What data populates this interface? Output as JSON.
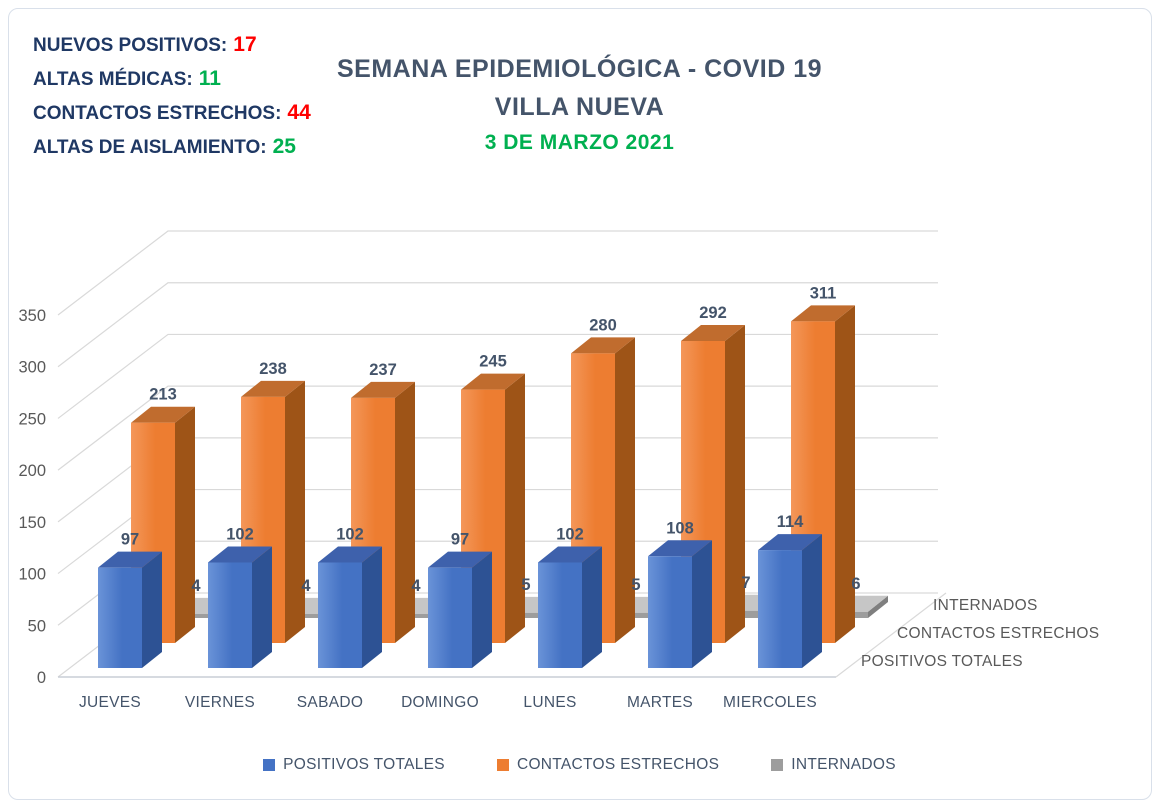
{
  "stats": {
    "items": [
      {
        "label": "NUEVOS POSITIVOS:",
        "value": "17",
        "value_color": "#ff0000"
      },
      {
        "label": "ALTAS MÉDICAS:",
        "value": "11",
        "value_color": "#00b050"
      },
      {
        "label": "CONTACTOS ESTRECHOS:",
        "value": "44",
        "value_color": "#ff0000"
      },
      {
        "label": "ALTAS DE AISLAMIENTO:",
        "value": "25",
        "value_color": "#00b050"
      }
    ]
  },
  "title": {
    "line1": "SEMANA EPIDEMIOLÓGICA - COVID 19",
    "line2": "VILLA NUEVA",
    "date": "3 DE MARZO 2021",
    "title_color": "#44546a",
    "date_color": "#00b050"
  },
  "chart_data": {
    "type": "bar",
    "projection": "3d",
    "title": "SEMANA EPIDEMIOLÓGICA - COVID 19 VILLA NUEVA",
    "categories": [
      "JUEVES",
      "VIERNES",
      "SABADO",
      "DOMINGO",
      "LUNES",
      "MARTES",
      "MIERCOLES"
    ],
    "series": [
      {
        "name": "POSITIVOS TOTALES",
        "values": [
          97,
          102,
          102,
          97,
          102,
          108,
          114
        ],
        "color": "#4472c4",
        "color_light": "#6a93d8",
        "color_top": "#3e61ac",
        "color_side": "#2d5294"
      },
      {
        "name": "CONTACTOS ESTRECHOS",
        "values": [
          213,
          238,
          237,
          245,
          280,
          292,
          311
        ],
        "color": "#ed7d31",
        "color_light": "#f4975a",
        "color_top": "#c06c2e",
        "color_side": "#9e5417"
      },
      {
        "name": "INTERNADOS",
        "values": [
          4,
          4,
          4,
          5,
          5,
          7,
          6
        ],
        "color": "#9d9d9d",
        "color_light": "#bcbcbc",
        "color_top": "#c6c6c6",
        "color_side": "#7f7f7f"
      }
    ],
    "value_axis": {
      "min": 0,
      "max": 350,
      "step": 50,
      "tick_labels": [
        "0",
        "50",
        "100",
        "150",
        "200",
        "250",
        "300",
        "350"
      ]
    },
    "depth_axis_labels": [
      "INTERNADOS",
      "CONTACTOS ESTRECHOS",
      "POSITIVOS TOTALES"
    ],
    "grid": true,
    "legend_position": "bottom",
    "label_color": "#44546a",
    "tick_color": "#595959",
    "grid_color": "#d9d9d9",
    "axis_line_color": "#c9ced6"
  }
}
